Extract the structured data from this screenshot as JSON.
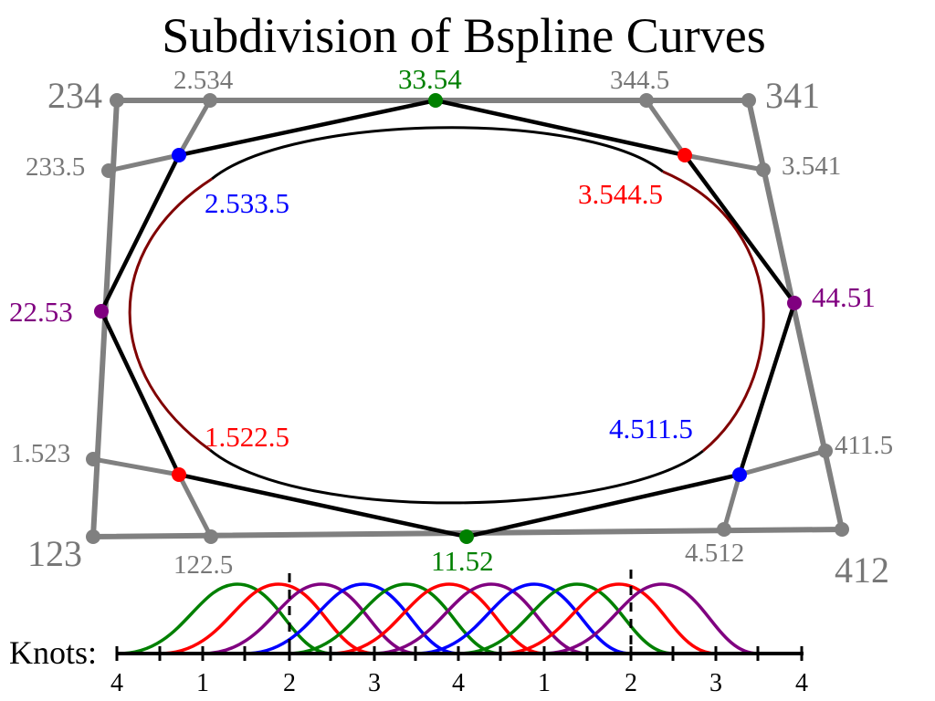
{
  "title": "Subdivision of Bspline Curves",
  "colors": {
    "gray": "#808080",
    "black": "#000000",
    "green": "#008000",
    "red": "#ff0000",
    "blue": "#0000ff",
    "purple": "#800080",
    "dark_red": "#800000"
  },
  "outer_polygon_labels": {
    "top_left": "234",
    "top_right": "341",
    "bottom_right": "412",
    "bottom_left": "123"
  },
  "gray_point_labels": {
    "top_left_right": "2.534",
    "top_right_left": "344.5",
    "left_top": "233.5",
    "right_top": "3.541",
    "left_bottom": "1.523",
    "right_bottom": "411.5",
    "bottom_left_right": "122.5",
    "bottom_right_left": "4.512"
  },
  "colored_point_labels": {
    "top_mid": "33.54",
    "bottom_mid": "11.52",
    "left_mid": "22.53",
    "right_mid": "44.51"
  },
  "curve_labels": {
    "upper_left": "2.533.5",
    "upper_right": "3.544.5",
    "lower_left": "1.522.5",
    "lower_right": "4.511.5"
  },
  "knots": {
    "label": "Knots:",
    "ticks": [
      "4",
      "1",
      "2",
      "3",
      "4",
      "1",
      "2",
      "3",
      "4"
    ]
  }
}
